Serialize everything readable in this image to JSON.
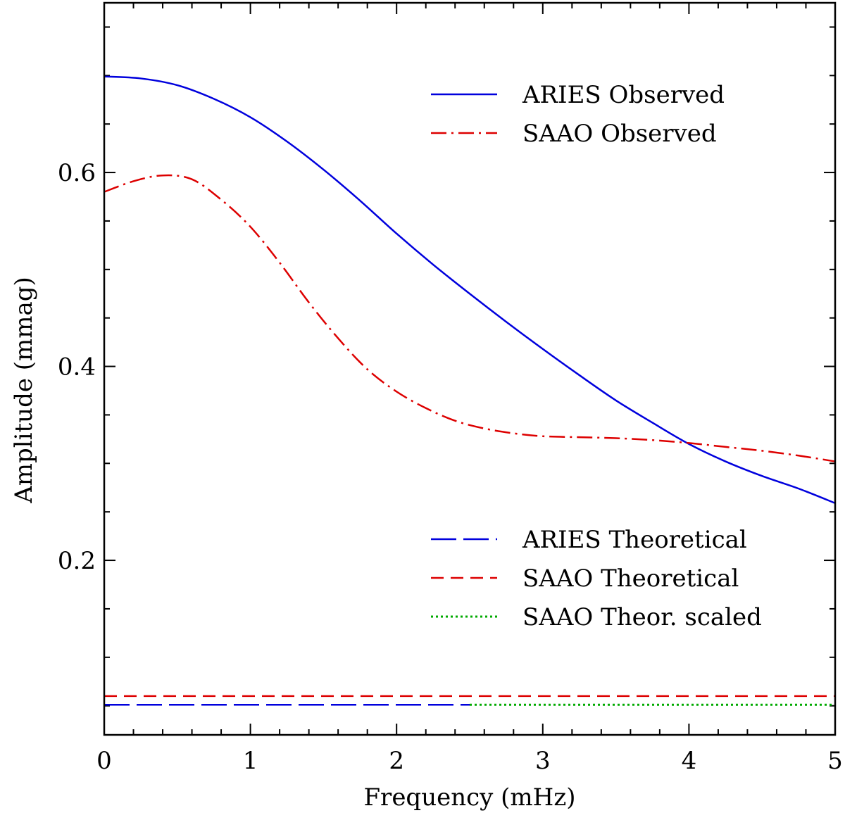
{
  "chart_data": {
    "type": "line",
    "title": "",
    "xlabel": "Frequency (mHz)",
    "ylabel": "Amplitude (mmag)",
    "xlim": [
      0,
      5
    ],
    "ylim": [
      0.02,
      0.775
    ],
    "x_ticks": [
      0,
      1,
      2,
      3,
      4,
      5
    ],
    "x_tick_labels": [
      "0",
      "1",
      "2",
      "3",
      "4",
      "5"
    ],
    "x_minor_step": 0.2,
    "y_ticks": [
      0.2,
      0.4,
      0.6
    ],
    "y_tick_labels": [
      "0.2",
      "0.4",
      "0.6"
    ],
    "y_minor_step": 0.05,
    "grid": false,
    "series": [
      {
        "name": "ARIES Observed",
        "legend_group": "top",
        "color": "#0000dd",
        "style": "solid",
        "x": [
          0,
          0.25,
          0.5,
          0.75,
          1.0,
          1.25,
          1.5,
          1.75,
          2.0,
          2.25,
          2.5,
          2.75,
          3.0,
          3.25,
          3.5,
          3.75,
          4.0,
          4.25,
          4.5,
          4.75,
          5.0
        ],
        "y": [
          0.699,
          0.697,
          0.69,
          0.676,
          0.657,
          0.632,
          0.603,
          0.571,
          0.537,
          0.505,
          0.475,
          0.446,
          0.418,
          0.391,
          0.365,
          0.342,
          0.32,
          0.302,
          0.287,
          0.274,
          0.259
        ]
      },
      {
        "name": "SAAO Observed",
        "legend_group": "top",
        "color": "#dd0000",
        "style": "dashdot",
        "x": [
          0,
          0.2,
          0.4,
          0.6,
          0.8,
          1.0,
          1.2,
          1.4,
          1.6,
          1.8,
          2.0,
          2.2,
          2.4,
          2.6,
          2.8,
          3.0,
          3.25,
          3.5,
          3.75,
          4.0,
          4.25,
          4.5,
          4.75,
          5.0
        ],
        "y": [
          0.58,
          0.591,
          0.597,
          0.593,
          0.572,
          0.544,
          0.507,
          0.466,
          0.429,
          0.397,
          0.374,
          0.357,
          0.344,
          0.336,
          0.331,
          0.328,
          0.327,
          0.326,
          0.324,
          0.321,
          0.317,
          0.313,
          0.308,
          0.302
        ]
      },
      {
        "name": "ARIES Theoretical",
        "legend_group": "bottom",
        "color": "#0000dd",
        "style": "longdash",
        "x": [
          0,
          2.5
        ],
        "y": [
          0.051,
          0.051
        ]
      },
      {
        "name": "SAAO Theoretical",
        "legend_group": "bottom",
        "color": "#dd0000",
        "style": "dashed",
        "x": [
          0,
          5
        ],
        "y": [
          0.06,
          0.06
        ]
      },
      {
        "name": "SAAO Theor. scaled",
        "legend_group": "bottom",
        "color": "#00aa00",
        "style": "dotted",
        "x": [
          2.5,
          5
        ],
        "y": [
          0.051,
          0.051
        ]
      }
    ],
    "legend_placement": "top-right and bottom-right"
  }
}
